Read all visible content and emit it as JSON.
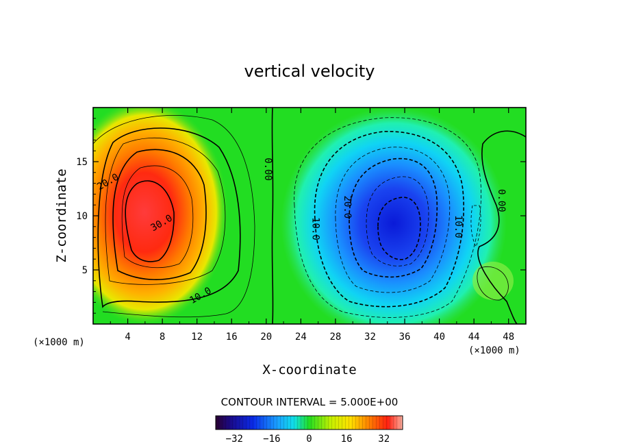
{
  "chart_data": {
    "type": "heatmap",
    "title": "vertical velocity",
    "xlabel": "X-coordinate",
    "ylabel": "Z-coordinate",
    "x_unit": "(×1000 m)",
    "y_unit": "(×1000 m)",
    "xlim": [
      0,
      50
    ],
    "ylim": [
      0,
      20
    ],
    "x_ticks": [
      4,
      8,
      12,
      16,
      20,
      24,
      28,
      32,
      36,
      40,
      44,
      48
    ],
    "y_ticks": [
      5,
      10,
      15
    ],
    "contour_interval_text": "CONTOUR INTERVAL = 5.000E+00",
    "contour_interval": 5.0,
    "contour_labels": [
      {
        "text": "20.0",
        "x": 1.8,
        "y": 13.0
      },
      {
        "text": "30.0",
        "x": 8.0,
        "y": 9.2
      },
      {
        "text": "10.0",
        "x": 12.5,
        "y": 2.5
      },
      {
        "text": "0.00",
        "x": 20.0,
        "y": 14.3
      },
      {
        "text": "10.0",
        "x": 25.5,
        "y": 8.8
      },
      {
        "text": "20.0",
        "x": 29.2,
        "y": 10.8
      },
      {
        "text": "10.0",
        "x": 42.0,
        "y": 9.0
      },
      {
        "text": "0.00",
        "x": 47.0,
        "y": 11.4
      }
    ],
    "features": [
      {
        "name": "updraft",
        "center_x": 6.0,
        "center_z": 10.0,
        "peak": 35
      },
      {
        "name": "downdraft",
        "center_x": 35.0,
        "center_z": 8.5,
        "peak": -32
      }
    ],
    "colorbar": {
      "min": -40,
      "max": 40,
      "ticks": [
        -32,
        -16,
        0,
        16,
        32
      ]
    }
  },
  "colors": {
    "axes": "#000000",
    "background": "#ffffff",
    "neutral": "#22dd22"
  }
}
